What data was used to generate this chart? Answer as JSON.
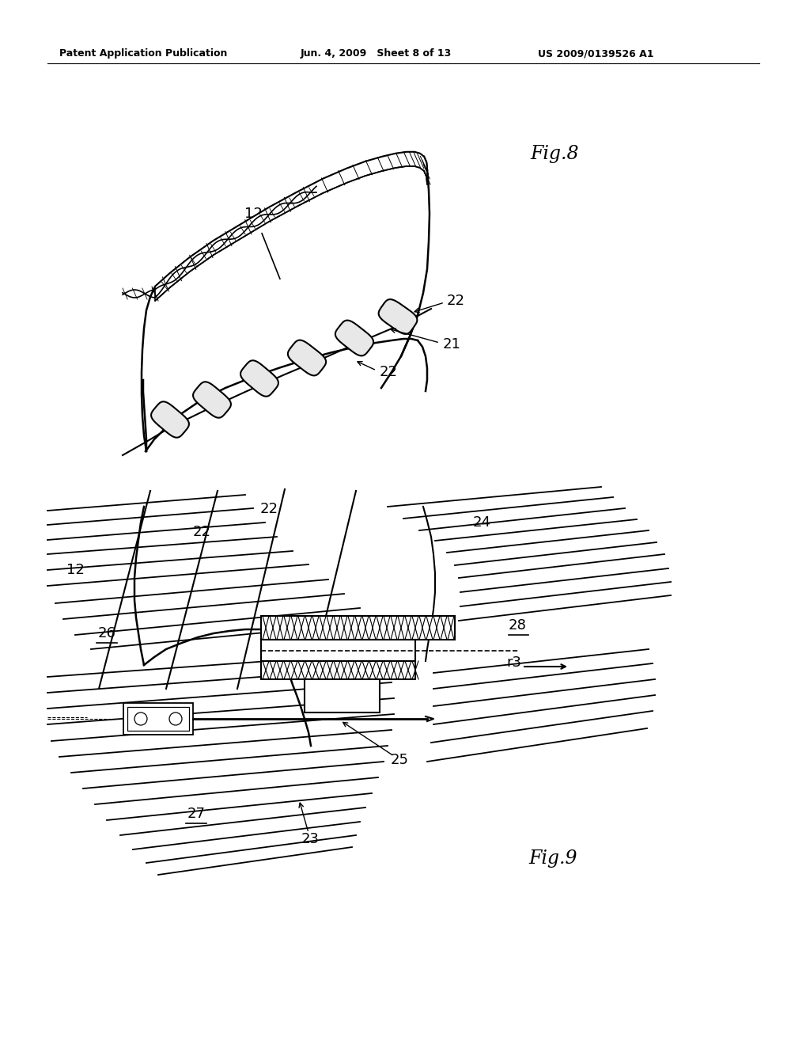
{
  "background_color": "#ffffff",
  "header_left": "Patent Application Publication",
  "header_center": "Jun. 4, 2009   Sheet 8 of 13",
  "header_right": "US 2009/0139526 A1",
  "fig8_label": "Fig.8",
  "fig9_label": "Fig.9"
}
